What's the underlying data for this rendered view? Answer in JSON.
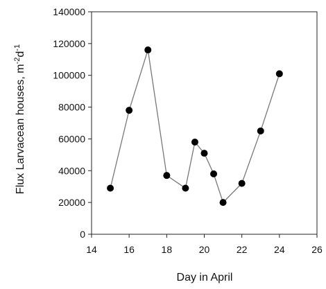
{
  "chart_data": {
    "type": "line",
    "xlabel": "Day in April",
    "ylabel": "Flux Larvacean houses, m",
    "ylabel_unit_parts": [
      "-2",
      "d",
      "-1"
    ],
    "xlim": [
      14,
      26
    ],
    "ylim": [
      0,
      140000
    ],
    "x_ticks": [
      14,
      16,
      18,
      20,
      22,
      24,
      26
    ],
    "y_ticks": [
      0,
      20000,
      40000,
      60000,
      80000,
      100000,
      120000,
      140000
    ],
    "grid": false,
    "series": [
      {
        "marker": "filled-circle",
        "color": "#000000",
        "line_color": "#777777",
        "x": [
          15,
          16,
          17,
          18,
          19,
          19.5,
          20,
          20.5,
          21,
          22,
          23,
          24
        ],
        "y": [
          29000,
          78000,
          116000,
          37000,
          29000,
          58000,
          51000,
          38000,
          20000,
          32000,
          65000,
          101000
        ]
      }
    ]
  }
}
